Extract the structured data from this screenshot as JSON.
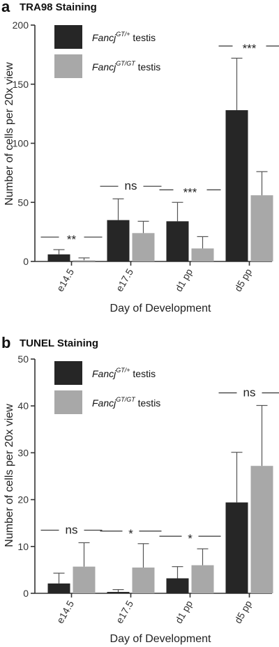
{
  "figure": {
    "panels": [
      {
        "letter": "a",
        "title": "TRA98 Staining",
        "ylabel": "Number of cells per 20x view",
        "xlabel": "Day of Development",
        "legend": [
          {
            "name": "Fancj",
            "sup": "GT/+",
            "suffix": " testis",
            "color": "#262626"
          },
          {
            "name": "Fancj",
            "sup": "GT/GT",
            "suffix": " testis",
            "color": "#a8a8a8"
          }
        ]
      },
      {
        "letter": "b",
        "title": "TUNEL Staining",
        "ylabel": "Number of cells per 20x view",
        "xlabel": "Day of Development",
        "legend": [
          {
            "name": "Fancj",
            "sup": "GT/+",
            "suffix": " testis",
            "color": "#262626"
          },
          {
            "name": "Fancj",
            "sup": "GT/GT",
            "suffix": " testis",
            "color": "#a8a8a8"
          }
        ]
      }
    ]
  },
  "chart_data": [
    {
      "type": "bar",
      "title": "TRA98 Staining",
      "xlabel": "Day of Development",
      "ylabel": "Number of cells per 20x view",
      "categories": [
        "e14.5",
        "e17.5",
        "d1 pp",
        "d5 pp"
      ],
      "ylim": [
        0,
        200
      ],
      "yticks": [
        0,
        50,
        100,
        150,
        200
      ],
      "series": [
        {
          "name": "FancjGT/+ testis",
          "color": "#262626",
          "values": [
            6,
            35,
            34,
            128
          ],
          "errors": [
            4,
            18,
            16,
            44
          ]
        },
        {
          "name": "FancjGT/GT testis",
          "color": "#a8a8a8",
          "values": [
            1,
            24,
            11,
            56
          ],
          "errors": [
            2,
            10,
            10,
            20
          ]
        }
      ],
      "significance": [
        "**",
        "ns",
        "***",
        "***"
      ],
      "legend_position": "top-left"
    },
    {
      "type": "bar",
      "title": "TUNEL Staining",
      "xlabel": "Day of Development",
      "ylabel": "Number of cells per 20x view",
      "categories": [
        "e14.5",
        "e17.5",
        "d1 pp",
        "d5 pp"
      ],
      "ylim": [
        0,
        50
      ],
      "yticks": [
        0,
        10,
        20,
        30,
        40,
        50
      ],
      "series": [
        {
          "name": "FancjGT/+ testis",
          "color": "#262626",
          "values": [
            2.1,
            0.3,
            3.2,
            19.4
          ],
          "errors": [
            2.2,
            0.5,
            2.5,
            10.7
          ]
        },
        {
          "name": "FancjGT/GT testis",
          "color": "#a8a8a8",
          "values": [
            5.7,
            5.5,
            6.0,
            27.2
          ],
          "errors": [
            5.1,
            5.1,
            3.5,
            12.9
          ]
        }
      ],
      "significance": [
        "ns",
        "*",
        "*",
        "ns"
      ],
      "legend_position": "top-left"
    }
  ]
}
